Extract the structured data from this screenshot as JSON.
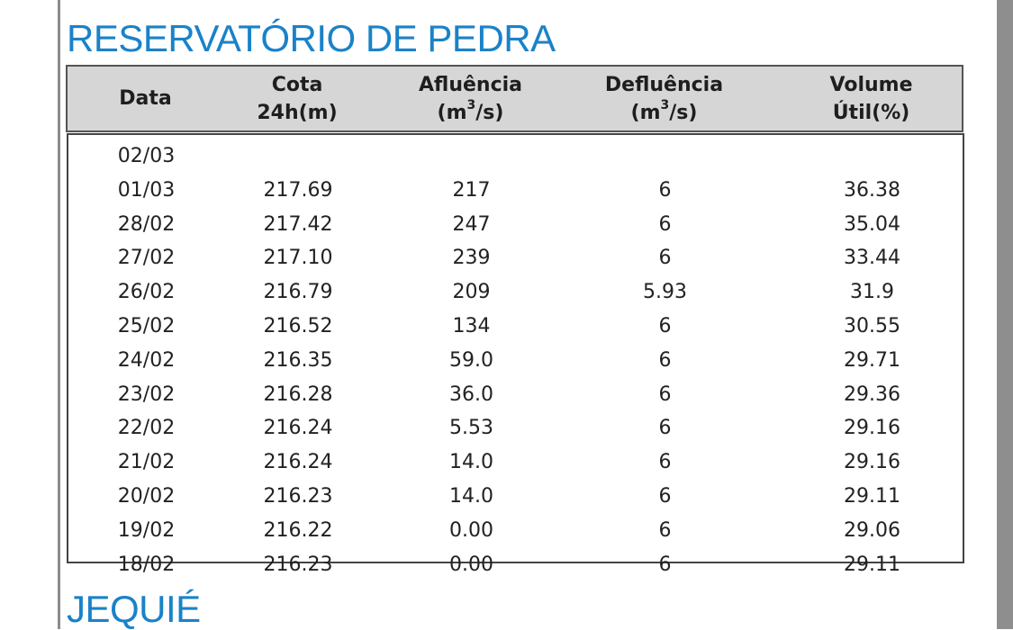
{
  "sections": [
    {
      "title": "RESERVATÓRIO DE PEDRA"
    },
    {
      "title": "JEQUIÉ"
    }
  ],
  "table": {
    "headers": [
      {
        "line1": "Data",
        "line2": ""
      },
      {
        "line1": "Cota",
        "line2": "24h(m)"
      },
      {
        "line1": "Afluência",
        "line2_pre": "(m",
        "line2_sup": "3",
        "line2_post": "/s)"
      },
      {
        "line1": "Defluência",
        "line2_pre": "(m",
        "line2_sup": "3",
        "line2_post": "/s)"
      },
      {
        "line1": "Volume",
        "line2": "Útil(%)"
      }
    ],
    "rows": [
      [
        "02/03",
        "",
        "",
        "",
        ""
      ],
      [
        "01/03",
        "217.69",
        "217",
        "6",
        "36.38"
      ],
      [
        "28/02",
        "217.42",
        "247",
        "6",
        "35.04"
      ],
      [
        "27/02",
        "217.10",
        "239",
        "6",
        "33.44"
      ],
      [
        "26/02",
        "216.79",
        "209",
        "5.93",
        "31.9"
      ],
      [
        "25/02",
        "216.52",
        "134",
        "6",
        "30.55"
      ],
      [
        "24/02",
        "216.35",
        "59.0",
        "6",
        "29.71"
      ],
      [
        "23/02",
        "216.28",
        "36.0",
        "6",
        "29.36"
      ],
      [
        "22/02",
        "216.24",
        "5.53",
        "6",
        "29.16"
      ],
      [
        "21/02",
        "216.24",
        "14.0",
        "6",
        "29.16"
      ],
      [
        "20/02",
        "216.23",
        "14.0",
        "6",
        "29.11"
      ],
      [
        "19/02",
        "216.22",
        "0.00",
        "6",
        "29.06"
      ],
      [
        "18/02",
        "216.23",
        "0.00",
        "6",
        "29.11"
      ]
    ]
  }
}
